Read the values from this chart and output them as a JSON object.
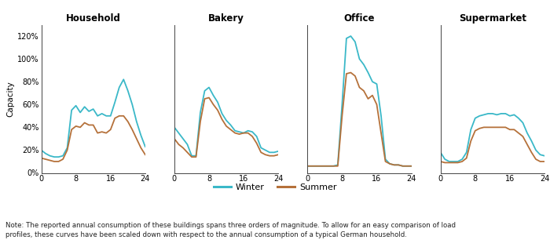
{
  "titles": [
    "Household",
    "Bakery",
    "Office",
    "Supermarket"
  ],
  "ylabel": "Capacity",
  "xlim": [
    0,
    24
  ],
  "ylim": [
    0,
    1.3
  ],
  "xticks": [
    0,
    8,
    16,
    24
  ],
  "yticks": [
    0.0,
    0.2,
    0.4,
    0.6,
    0.8,
    1.0,
    1.2
  ],
  "ytick_labels": [
    "0%",
    "20%",
    "40%",
    "60%",
    "80%",
    "100%",
    "120%"
  ],
  "winter_color": "#3ab8c8",
  "summer_color": "#b5713a",
  "legend_labels": [
    "Winter",
    "Summer"
  ],
  "note": "Note: The reported annual consumption of these buildings spans three orders of magnitude. To allow for an easy comparison of load\nprofiles, these curves have been scaled down with respect to the annual consumption of a typical German household.",
  "household_winter": [
    [
      0,
      0.2
    ],
    [
      1,
      0.17
    ],
    [
      2,
      0.15
    ],
    [
      3,
      0.14
    ],
    [
      4,
      0.14
    ],
    [
      5,
      0.15
    ],
    [
      6,
      0.22
    ],
    [
      7,
      0.55
    ],
    [
      8,
      0.59
    ],
    [
      9,
      0.53
    ],
    [
      10,
      0.58
    ],
    [
      11,
      0.54
    ],
    [
      12,
      0.56
    ],
    [
      13,
      0.5
    ],
    [
      14,
      0.52
    ],
    [
      15,
      0.5
    ],
    [
      16,
      0.5
    ],
    [
      17,
      0.62
    ],
    [
      18,
      0.75
    ],
    [
      19,
      0.82
    ],
    [
      20,
      0.72
    ],
    [
      21,
      0.6
    ],
    [
      22,
      0.45
    ],
    [
      23,
      0.33
    ],
    [
      24,
      0.23
    ]
  ],
  "household_summer": [
    [
      0,
      0.13
    ],
    [
      1,
      0.12
    ],
    [
      2,
      0.11
    ],
    [
      3,
      0.1
    ],
    [
      4,
      0.1
    ],
    [
      5,
      0.12
    ],
    [
      6,
      0.2
    ],
    [
      7,
      0.38
    ],
    [
      8,
      0.41
    ],
    [
      9,
      0.4
    ],
    [
      10,
      0.44
    ],
    [
      11,
      0.42
    ],
    [
      12,
      0.42
    ],
    [
      13,
      0.35
    ],
    [
      14,
      0.36
    ],
    [
      15,
      0.35
    ],
    [
      16,
      0.38
    ],
    [
      17,
      0.48
    ],
    [
      18,
      0.5
    ],
    [
      19,
      0.5
    ],
    [
      20,
      0.45
    ],
    [
      21,
      0.38
    ],
    [
      22,
      0.3
    ],
    [
      23,
      0.22
    ],
    [
      24,
      0.16
    ]
  ],
  "bakery_winter": [
    [
      0,
      0.4
    ],
    [
      1,
      0.35
    ],
    [
      2,
      0.3
    ],
    [
      3,
      0.25
    ],
    [
      4,
      0.15
    ],
    [
      5,
      0.15
    ],
    [
      6,
      0.53
    ],
    [
      7,
      0.72
    ],
    [
      8,
      0.75
    ],
    [
      9,
      0.68
    ],
    [
      10,
      0.62
    ],
    [
      11,
      0.52
    ],
    [
      12,
      0.46
    ],
    [
      13,
      0.42
    ],
    [
      14,
      0.37
    ],
    [
      15,
      0.36
    ],
    [
      16,
      0.35
    ],
    [
      17,
      0.37
    ],
    [
      18,
      0.36
    ],
    [
      19,
      0.32
    ],
    [
      20,
      0.22
    ],
    [
      21,
      0.2
    ],
    [
      22,
      0.18
    ],
    [
      23,
      0.18
    ],
    [
      24,
      0.19
    ]
  ],
  "bakery_summer": [
    [
      0,
      0.3
    ],
    [
      1,
      0.25
    ],
    [
      2,
      0.22
    ],
    [
      3,
      0.18
    ],
    [
      4,
      0.14
    ],
    [
      5,
      0.14
    ],
    [
      6,
      0.45
    ],
    [
      7,
      0.65
    ],
    [
      8,
      0.66
    ],
    [
      9,
      0.6
    ],
    [
      10,
      0.55
    ],
    [
      11,
      0.47
    ],
    [
      12,
      0.41
    ],
    [
      13,
      0.38
    ],
    [
      14,
      0.35
    ],
    [
      15,
      0.34
    ],
    [
      16,
      0.35
    ],
    [
      17,
      0.35
    ],
    [
      18,
      0.32
    ],
    [
      19,
      0.26
    ],
    [
      20,
      0.18
    ],
    [
      21,
      0.16
    ],
    [
      22,
      0.15
    ],
    [
      23,
      0.15
    ],
    [
      24,
      0.16
    ]
  ],
  "office_winter": [
    [
      0,
      0.06
    ],
    [
      1,
      0.06
    ],
    [
      2,
      0.06
    ],
    [
      3,
      0.06
    ],
    [
      4,
      0.06
    ],
    [
      5,
      0.06
    ],
    [
      6,
      0.06
    ],
    [
      7,
      0.07
    ],
    [
      8,
      0.6
    ],
    [
      9,
      1.18
    ],
    [
      10,
      1.2
    ],
    [
      11,
      1.15
    ],
    [
      12,
      1.0
    ],
    [
      13,
      0.95
    ],
    [
      14,
      0.88
    ],
    [
      15,
      0.8
    ],
    [
      16,
      0.78
    ],
    [
      17,
      0.5
    ],
    [
      18,
      0.12
    ],
    [
      19,
      0.08
    ],
    [
      20,
      0.07
    ],
    [
      21,
      0.07
    ],
    [
      22,
      0.06
    ],
    [
      23,
      0.06
    ],
    [
      24,
      0.06
    ]
  ],
  "office_summer": [
    [
      0,
      0.06
    ],
    [
      1,
      0.06
    ],
    [
      2,
      0.06
    ],
    [
      3,
      0.06
    ],
    [
      4,
      0.06
    ],
    [
      5,
      0.06
    ],
    [
      6,
      0.06
    ],
    [
      7,
      0.06
    ],
    [
      8,
      0.5
    ],
    [
      9,
      0.87
    ],
    [
      10,
      0.88
    ],
    [
      11,
      0.85
    ],
    [
      12,
      0.75
    ],
    [
      13,
      0.72
    ],
    [
      14,
      0.65
    ],
    [
      15,
      0.68
    ],
    [
      16,
      0.6
    ],
    [
      17,
      0.35
    ],
    [
      18,
      0.1
    ],
    [
      19,
      0.08
    ],
    [
      20,
      0.07
    ],
    [
      21,
      0.07
    ],
    [
      22,
      0.06
    ],
    [
      23,
      0.06
    ],
    [
      24,
      0.06
    ]
  ],
  "supermarket_winter": [
    [
      0,
      0.18
    ],
    [
      1,
      0.12
    ],
    [
      2,
      0.1
    ],
    [
      3,
      0.1
    ],
    [
      4,
      0.1
    ],
    [
      5,
      0.12
    ],
    [
      6,
      0.18
    ],
    [
      7,
      0.38
    ],
    [
      8,
      0.48
    ],
    [
      9,
      0.5
    ],
    [
      10,
      0.51
    ],
    [
      11,
      0.52
    ],
    [
      12,
      0.52
    ],
    [
      13,
      0.51
    ],
    [
      14,
      0.52
    ],
    [
      15,
      0.52
    ],
    [
      16,
      0.5
    ],
    [
      17,
      0.51
    ],
    [
      18,
      0.48
    ],
    [
      19,
      0.44
    ],
    [
      20,
      0.35
    ],
    [
      21,
      0.28
    ],
    [
      22,
      0.2
    ],
    [
      23,
      0.16
    ],
    [
      24,
      0.15
    ]
  ],
  "supermarket_summer": [
    [
      0,
      0.1
    ],
    [
      1,
      0.09
    ],
    [
      2,
      0.09
    ],
    [
      3,
      0.09
    ],
    [
      4,
      0.09
    ],
    [
      5,
      0.1
    ],
    [
      6,
      0.13
    ],
    [
      7,
      0.28
    ],
    [
      8,
      0.37
    ],
    [
      9,
      0.39
    ],
    [
      10,
      0.4
    ],
    [
      11,
      0.4
    ],
    [
      12,
      0.4
    ],
    [
      13,
      0.4
    ],
    [
      14,
      0.4
    ],
    [
      15,
      0.4
    ],
    [
      16,
      0.38
    ],
    [
      17,
      0.38
    ],
    [
      18,
      0.35
    ],
    [
      19,
      0.32
    ],
    [
      20,
      0.25
    ],
    [
      21,
      0.18
    ],
    [
      22,
      0.12
    ],
    [
      23,
      0.1
    ],
    [
      24,
      0.1
    ]
  ]
}
